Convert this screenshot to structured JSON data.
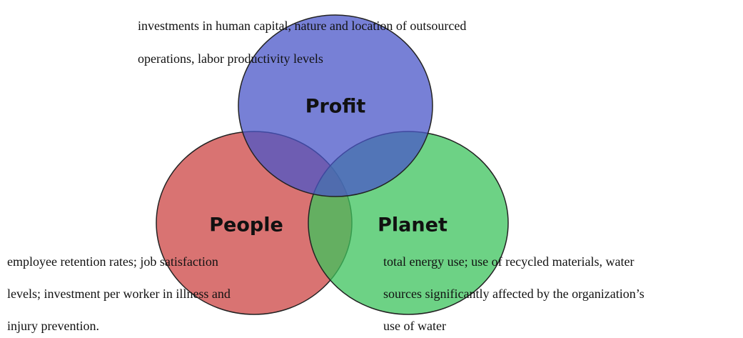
{
  "nodes": [
    {
      "label": "Profit",
      "description": [
        "investments in human capital, nature and location of outsourced",
        "operations, labor productivity levels"
      ]
    },
    {
      "label": "People",
      "description": [
        "employee retention rates; job satisfaction",
        "levels; investment per worker in illness and",
        "injury prevention."
      ]
    },
    {
      "label": "Planet",
      "description": [
        "total energy use; use of recycled materials, water",
        "sources significantly affected by the organization’s",
        "use of water"
      ]
    }
  ]
}
